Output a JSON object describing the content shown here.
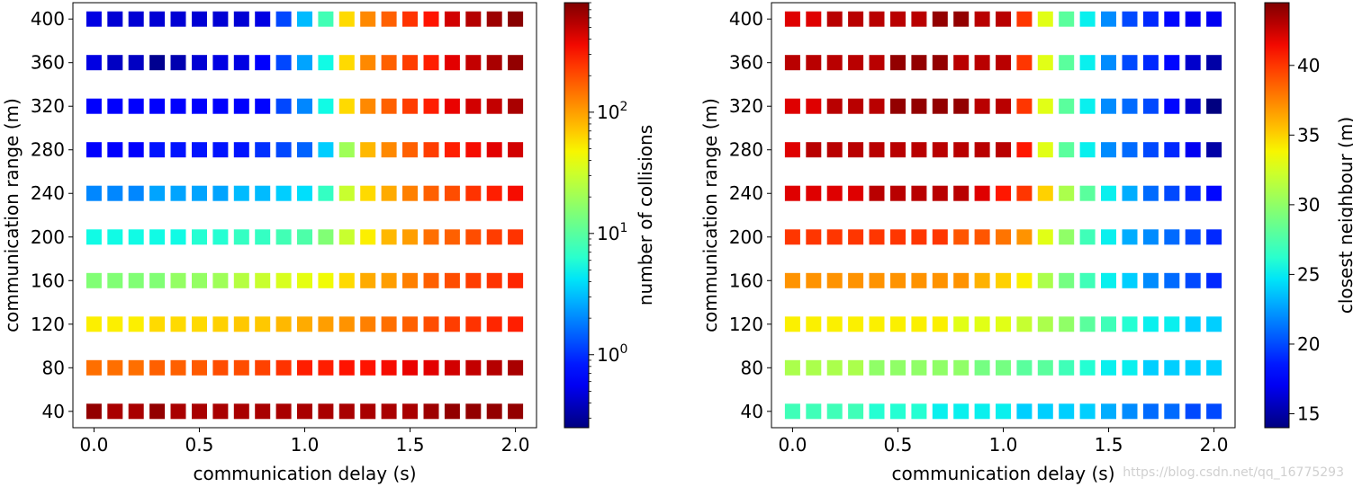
{
  "watermark": "https://blog.csdn.net/qq_16775293",
  "chart_data": [
    {
      "type": "heatmap",
      "xlabel": "communication delay (s)",
      "ylabel": "communication range (m)",
      "x": [
        0.0,
        0.1,
        0.2,
        0.3,
        0.4,
        0.5,
        0.6,
        0.7,
        0.8,
        0.9,
        1.0,
        1.1,
        1.2,
        1.3,
        1.4,
        1.5,
        1.6,
        1.7,
        1.8,
        1.9,
        2.0
      ],
      "y": [
        40,
        80,
        120,
        160,
        200,
        240,
        280,
        320,
        360,
        400
      ],
      "xlim": [
        -0.1,
        2.1
      ],
      "ylim": [
        25,
        415
      ],
      "xticks": [
        0.0,
        0.5,
        1.0,
        1.5,
        2.0
      ],
      "xtick_labels": [
        "0.0",
        "0.5",
        "1.0",
        "1.5",
        "2.0"
      ],
      "yticks": [
        40,
        80,
        120,
        160,
        200,
        240,
        280,
        320,
        360,
        400
      ],
      "ytick_labels": [
        "40",
        "80",
        "120",
        "160",
        "200",
        "240",
        "280",
        "320",
        "360",
        "400"
      ],
      "grid": false,
      "colormap": "jet",
      "colorbar": {
        "label": "number of collisions",
        "scale": "log",
        "range": [
          0.25,
          800
        ],
        "ticks": [
          1,
          10,
          100
        ],
        "tick_base": "10",
        "tick_exponents": [
          "0",
          "1",
          "2"
        ]
      },
      "z": [
        [
          700,
          600,
          600,
          700,
          600,
          600,
          600,
          600,
          600,
          600,
          600,
          600,
          600,
          600,
          600,
          600,
          650,
          700,
          700,
          700,
          700
        ],
        [
          150,
          150,
          150,
          170,
          170,
          180,
          200,
          200,
          220,
          250,
          300,
          300,
          330,
          330,
          350,
          380,
          400,
          450,
          500,
          550,
          600
        ],
        [
          50,
          50,
          50,
          60,
          60,
          60,
          65,
          70,
          70,
          80,
          90,
          100,
          110,
          130,
          150,
          170,
          200,
          230,
          250,
          280,
          300
        ],
        [
          15,
          15,
          15,
          15,
          18,
          18,
          20,
          25,
          30,
          35,
          40,
          45,
          60,
          90,
          100,
          130,
          170,
          200,
          230,
          250,
          280
        ],
        [
          5,
          5,
          5,
          5,
          5,
          6,
          6,
          7,
          7,
          8,
          9,
          15,
          30,
          50,
          80,
          100,
          150,
          170,
          200,
          230,
          250
        ],
        [
          2,
          2,
          2,
          2.5,
          2.5,
          2.5,
          2.5,
          3,
          3,
          3.5,
          4,
          7,
          30,
          60,
          90,
          130,
          170,
          200,
          250,
          300,
          350
        ],
        [
          0.6,
          0.6,
          0.6,
          0.8,
          0.8,
          0.8,
          0.8,
          0.8,
          1.0,
          1.2,
          1.5,
          3.5,
          20,
          80,
          120,
          170,
          230,
          300,
          350,
          400,
          450
        ],
        [
          0.6,
          0.6,
          0.6,
          0.6,
          0.6,
          0.6,
          0.6,
          0.6,
          0.7,
          1.2,
          2,
          5,
          60,
          120,
          170,
          230,
          300,
          380,
          450,
          500,
          600
        ],
        [
          0.5,
          0.4,
          0.4,
          0.28,
          0.35,
          0.45,
          0.5,
          0.5,
          0.6,
          1.2,
          2.5,
          5,
          60,
          120,
          170,
          230,
          300,
          400,
          500,
          600,
          700
        ],
        [
          0.5,
          0.45,
          0.45,
          0.45,
          0.45,
          0.45,
          0.45,
          0.45,
          0.5,
          1.2,
          3,
          8,
          60,
          120,
          170,
          250,
          330,
          450,
          550,
          650,
          750
        ]
      ]
    },
    {
      "type": "heatmap",
      "xlabel": "communication delay (s)",
      "ylabel": "communication range (m)",
      "x": [
        0.0,
        0.1,
        0.2,
        0.3,
        0.4,
        0.5,
        0.6,
        0.7,
        0.8,
        0.9,
        1.0,
        1.1,
        1.2,
        1.3,
        1.4,
        1.5,
        1.6,
        1.7,
        1.8,
        1.9,
        2.0
      ],
      "y": [
        40,
        80,
        120,
        160,
        200,
        240,
        280,
        320,
        360,
        400
      ],
      "xlim": [
        -0.1,
        2.1
      ],
      "ylim": [
        25,
        415
      ],
      "xticks": [
        0.0,
        0.5,
        1.0,
        1.5,
        2.0
      ],
      "xtick_labels": [
        "0.0",
        "0.5",
        "1.0",
        "1.5",
        "2.0"
      ],
      "yticks": [
        40,
        80,
        120,
        160,
        200,
        240,
        280,
        320,
        360,
        400
      ],
      "ytick_labels": [
        "40",
        "80",
        "120",
        "160",
        "200",
        "240",
        "280",
        "320",
        "360",
        "400"
      ],
      "grid": false,
      "colormap": "jet",
      "colorbar": {
        "label": "closest neighbour (m)",
        "scale": "linear",
        "range": [
          14,
          44.5
        ],
        "ticks": [
          15,
          20,
          25,
          30,
          35,
          40
        ],
        "tick_labels": [
          "15",
          "20",
          "25",
          "30",
          "35",
          "40"
        ]
      },
      "z": [
        [
          27,
          27,
          27,
          27,
          26,
          26,
          26,
          25,
          25,
          25,
          25,
          24,
          24,
          24,
          24,
          23,
          22,
          21,
          21,
          20,
          20
        ],
        [
          31,
          31,
          31,
          31,
          30,
          30,
          30,
          30,
          30,
          29,
          29,
          28,
          28,
          27,
          26,
          25,
          25,
          24,
          24,
          24,
          24
        ],
        [
          34,
          34,
          34,
          34,
          34,
          34,
          34,
          34,
          33,
          33,
          33,
          32,
          31,
          30,
          28,
          27,
          26,
          25,
          25,
          24,
          24
        ],
        [
          37,
          37,
          37,
          37,
          37,
          37,
          37,
          37,
          37,
          36,
          35,
          34,
          31,
          29,
          27,
          25,
          24,
          22,
          21,
          20,
          19
        ],
        [
          40,
          40,
          40,
          40,
          40,
          40,
          40,
          40,
          39,
          39,
          38,
          37,
          33,
          30,
          27,
          25,
          23,
          22,
          21,
          20,
          19
        ],
        [
          42,
          42,
          42,
          42,
          43,
          43,
          43,
          43,
          43,
          42,
          41,
          40,
          35,
          31,
          28,
          25,
          23,
          21,
          20,
          19,
          18
        ],
        [
          42,
          43,
          43,
          43,
          43,
          43,
          43,
          43,
          43,
          43,
          43,
          41,
          33,
          28,
          25,
          22,
          21,
          20,
          19,
          17,
          15
        ],
        [
          42,
          42,
          43,
          43,
          43,
          44,
          44,
          44,
          44,
          43,
          43,
          40,
          33,
          28,
          25,
          22,
          21,
          20,
          18,
          16,
          14
        ],
        [
          43,
          43,
          43,
          43,
          43,
          44,
          44,
          44,
          43,
          43,
          43,
          40,
          33,
          28,
          25,
          22,
          20,
          19,
          18,
          16,
          15
        ],
        [
          42,
          42,
          43,
          43,
          43,
          43,
          43,
          44,
          44,
          43,
          43,
          40,
          33,
          28,
          25,
          22,
          20,
          19,
          18,
          17,
          17
        ]
      ]
    }
  ]
}
